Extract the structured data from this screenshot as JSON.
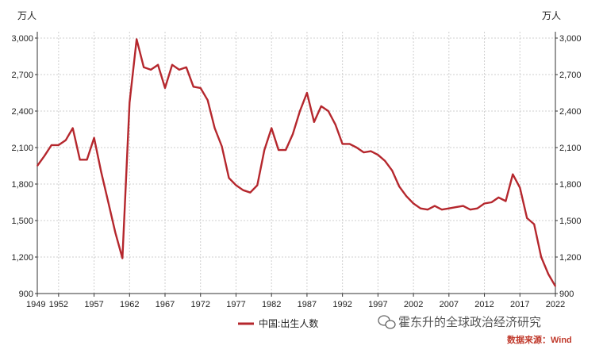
{
  "chart_data": {
    "type": "line",
    "title": "",
    "unit_left": "万人",
    "unit_right": "万人",
    "xlim": [
      1949,
      2022
    ],
    "ylim": [
      900,
      3000
    ],
    "yticks": [
      900,
      1200,
      1500,
      1800,
      2100,
      2400,
      2700,
      3000
    ],
    "ytick_labels": [
      "900",
      "1,200",
      "1,500",
      "1,800",
      "2,100",
      "2,400",
      "2,700",
      "3,000"
    ],
    "xticks": [
      1949,
      1952,
      1957,
      1962,
      1967,
      1972,
      1977,
      1982,
      1987,
      1992,
      1997,
      2002,
      2007,
      2012,
      2017,
      2022
    ],
    "grid": true,
    "legend_position": "bottom-center",
    "series": [
      {
        "name": "中国:出生人数",
        "color": "#b5272d",
        "x": [
          1949,
          1950,
          1951,
          1952,
          1953,
          1954,
          1955,
          1956,
          1957,
          1958,
          1959,
          1960,
          1961,
          1962,
          1963,
          1964,
          1965,
          1966,
          1967,
          1968,
          1969,
          1970,
          1971,
          1972,
          1973,
          1974,
          1975,
          1976,
          1977,
          1978,
          1979,
          1980,
          1981,
          1982,
          1983,
          1984,
          1985,
          1986,
          1987,
          1988,
          1989,
          1990,
          1991,
          1992,
          1993,
          1994,
          1995,
          1996,
          1997,
          1998,
          1999,
          2000,
          2001,
          2002,
          2003,
          2004,
          2005,
          2006,
          2007,
          2008,
          2009,
          2010,
          2011,
          2012,
          2013,
          2014,
          2015,
          2016,
          2017,
          2018,
          2019,
          2020,
          2021,
          2022
        ],
        "y": [
          1950,
          2030,
          2120,
          2120,
          2160,
          2260,
          2000,
          2000,
          2180,
          1900,
          1650,
          1400,
          1190,
          2470,
          2990,
          2760,
          2740,
          2780,
          2590,
          2780,
          2740,
          2760,
          2600,
          2590,
          2490,
          2260,
          2110,
          1850,
          1790,
          1750,
          1730,
          1790,
          2080,
          2260,
          2080,
          2080,
          2210,
          2400,
          2550,
          2310,
          2440,
          2400,
          2290,
          2130,
          2130,
          2100,
          2060,
          2070,
          2040,
          1990,
          1910,
          1780,
          1700,
          1640,
          1600,
          1590,
          1620,
          1590,
          1600,
          1610,
          1620,
          1590,
          1600,
          1640,
          1650,
          1690,
          1660,
          1880,
          1770,
          1520,
          1470,
          1200,
          1060,
          960
        ]
      }
    ]
  },
  "watermark": "霍东升的全球政治经济研究",
  "source": "数据来源：Wind"
}
